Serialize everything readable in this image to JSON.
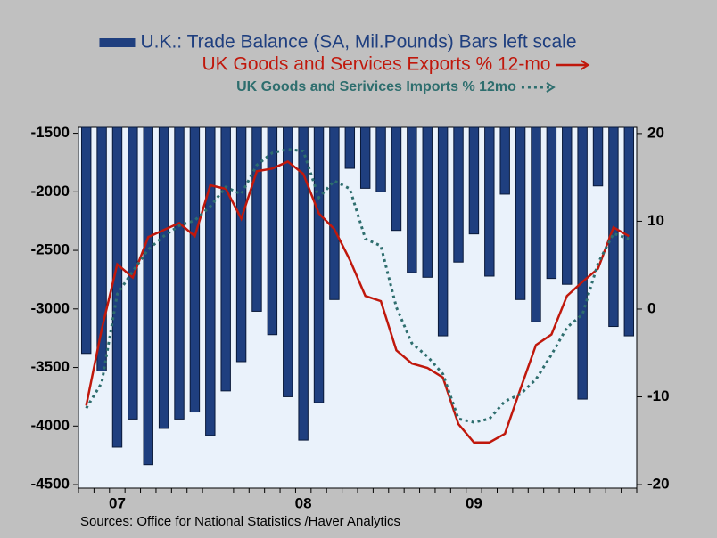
{
  "chart_data": {
    "type": "bar",
    "categories": [
      null,
      null,
      "07",
      null,
      null,
      null,
      null,
      null,
      null,
      null,
      null,
      null,
      null,
      null,
      "08",
      null,
      null,
      null,
      null,
      null,
      null,
      null,
      null,
      null,
      null,
      "09",
      null,
      null,
      null,
      null,
      null,
      null,
      null,
      null,
      null,
      null
    ],
    "series": [
      {
        "name": "U.K.: Trade Balance (SA, Mil.Pounds) Bars left scale",
        "type": "bar",
        "axis": "y",
        "color": "#1f3f7f",
        "values": [
          -3380,
          -3530,
          -4180,
          -3940,
          -4330,
          -4020,
          -3940,
          -3880,
          -4080,
          -3700,
          -3450,
          -3020,
          -3220,
          -3750,
          -4120,
          -3800,
          -2920,
          -1800,
          -1970,
          -2000,
          -2330,
          -2690,
          -2730,
          -3230,
          -2600,
          -2360,
          -2720,
          -2020,
          -2920,
          -3110,
          -2740,
          -2790,
          -3770,
          -1950,
          -3150,
          -3230
        ]
      },
      {
        "name": "UK Goods and Services Exports % 12-mo",
        "type": "line",
        "axis": "y2",
        "color": "#c0180c",
        "dash": "solid",
        "values": [
          -11.0,
          -2.3,
          5.1,
          3.6,
          8.2,
          9.0,
          9.8,
          8.3,
          14.1,
          13.7,
          10.3,
          15.7,
          16.0,
          16.8,
          15.4,
          10.9,
          9.1,
          5.6,
          1.5,
          0.9,
          -4.7,
          -6.2,
          -6.7,
          -7.8,
          -13.1,
          -15.2,
          -15.2,
          -14.2,
          -9.1,
          -4.1,
          -2.9,
          1.5,
          3.1,
          4.6,
          9.3,
          8.3
        ]
      },
      {
        "name": "UK Goods and Serivices Imports % 12mo",
        "type": "line",
        "axis": "y2",
        "color": "#2e6e6e",
        "dash": "dotted",
        "values": [
          -11.3,
          -8.4,
          1.7,
          4.3,
          6.8,
          8.3,
          9.5,
          10.1,
          11.7,
          13.9,
          13.1,
          16.4,
          17.8,
          18.2,
          18.0,
          12.7,
          14.6,
          13.7,
          8.0,
          7.2,
          0.2,
          -3.9,
          -5.4,
          -7.4,
          -12.5,
          -12.9,
          -12.5,
          -10.5,
          -9.7,
          -8.0,
          -5.2,
          -2.1,
          -0.6,
          5.2,
          8.6,
          8.0
        ]
      }
    ],
    "ylim": [
      -4530,
      -1450
    ],
    "yticks": [
      -4500,
      -4000,
      -3500,
      -3000,
      -2500,
      -2000,
      -1500
    ],
    "y2lim": [
      -20.4,
      20.7
    ],
    "y2ticks": [
      -20,
      -10,
      0,
      10,
      20
    ],
    "source": "Sources:  Office for National Statistics /Haver Analytics"
  }
}
